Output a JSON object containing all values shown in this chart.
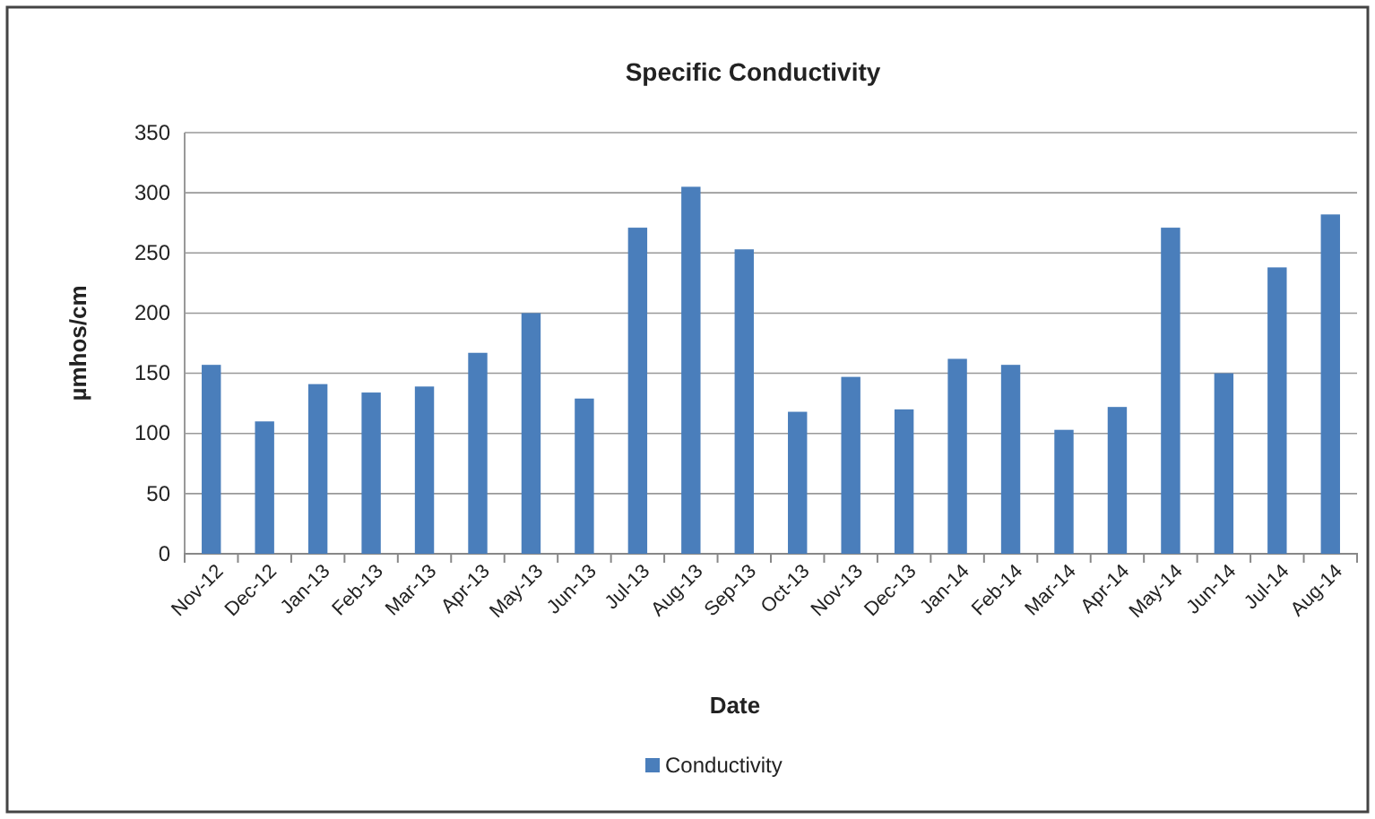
{
  "chart_data": {
    "type": "bar",
    "title": "Specific Conductivity",
    "xlabel": "Date",
    "ylabel": "µmhos/cm",
    "categories": [
      "Nov-12",
      "Dec-12",
      "Jan-13",
      "Feb-13",
      "Mar-13",
      "Apr-13",
      "May-13",
      "Jun-13",
      "Jul-13",
      "Aug-13",
      "Sep-13",
      "Oct-13",
      "Nov-13",
      "Dec-13",
      "Jan-14",
      "Feb-14",
      "Mar-14",
      "Apr-14",
      "May-14",
      "Jun-14",
      "Jul-14",
      "Aug-14"
    ],
    "series": [
      {
        "name": "Conductivity",
        "color": "#4a7ebb",
        "values": [
          157,
          110,
          141,
          134,
          139,
          167,
          200,
          129,
          271,
          305,
          253,
          118,
          147,
          120,
          162,
          157,
          103,
          122,
          271,
          150,
          238,
          282
        ]
      }
    ],
    "ylim": [
      0,
      350
    ],
    "yticks": [
      0,
      50,
      100,
      150,
      200,
      250,
      300,
      350
    ],
    "grid": "y",
    "legend": "bottom"
  }
}
